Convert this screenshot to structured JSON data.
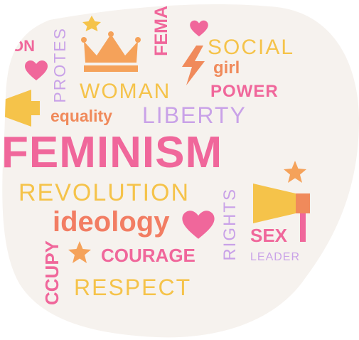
{
  "colors": {
    "background": "#ffffff",
    "blob": "#f6f2ee",
    "pink": "#f0679b",
    "yellow": "#f5c34a",
    "orange": "#f08a5b",
    "purple": "#c9a2e8",
    "coral": "#f27d63"
  },
  "words": {
    "w01": "ON",
    "w02": "PROTES",
    "w03": "WOMAN",
    "w04": "FEMA",
    "w05": "SOCIAL",
    "w06": "girl",
    "w07": "POWER",
    "w08": "equality",
    "w09": "LIBERTY",
    "w10": "FEMINISM",
    "w11": "REVOLUTION",
    "w12": "RIGHTS",
    "w13": "ideology",
    "w14": "SEX",
    "w15": "CCUPY",
    "w16": "COURAGE",
    "w17": "LEADER",
    "w18": "RESPECT"
  },
  "icons": [
    "crown-icon",
    "heart-icon",
    "lightning-icon",
    "megaphone-icon",
    "star-icon"
  ]
}
